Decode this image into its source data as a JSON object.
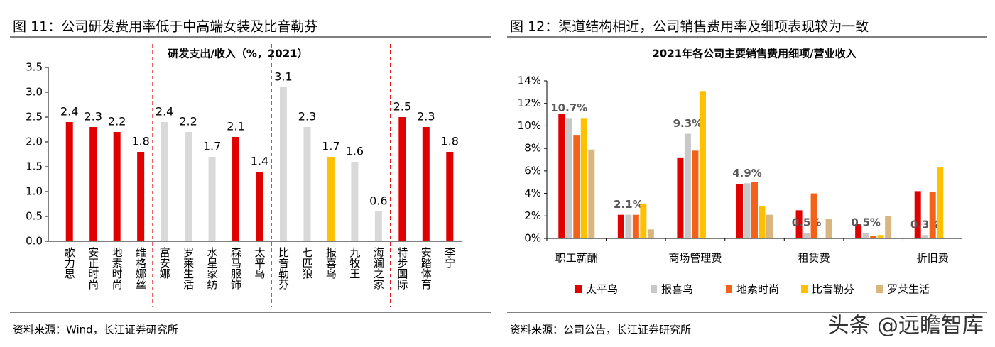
{
  "chart_data": [
    {
      "type": "bar",
      "title": "图 11：公司研发费用率低于中高端女装及比音勒芬",
      "subtitle": "研发支出/收入（%，2021）",
      "source": "资料来源：Wind，长江证券研究所",
      "categories": [
        "歌力思",
        "安正时尚",
        "地素时尚",
        "维格娜丝",
        "富安娜",
        "罗莱生活",
        "水星家纺",
        "森马服饰",
        "太平鸟",
        "比音勒芬",
        "七匹狼",
        "报喜鸟",
        "九牧王",
        "海澜之家",
        "特步国际",
        "安踏体育",
        "李宁"
      ],
      "values": [
        2.4,
        2.3,
        2.2,
        1.8,
        2.4,
        2.2,
        1.7,
        2.1,
        1.4,
        3.1,
        2.3,
        1.7,
        1.6,
        0.6,
        2.5,
        2.3,
        1.8
      ],
      "colors": [
        "#e10000",
        "#e10000",
        "#e10000",
        "#e10000",
        "#d9d9d9",
        "#d9d9d9",
        "#d9d9d9",
        "#e10000",
        "#e10000",
        "#d9d9d9",
        "#d9d9d9",
        "#ffc000",
        "#d9d9d9",
        "#d9d9d9",
        "#e10000",
        "#e10000",
        "#e10000"
      ],
      "ylim": [
        0,
        3.5
      ],
      "yticks": [
        {
          "value": 0,
          "label": "0.0"
        },
        0.5,
        {
          "value": 1,
          "label": "1.0"
        },
        1.5,
        {
          "value": 2,
          "label": "2.0"
        },
        2.5,
        {
          "value": 3,
          "label": "3.0"
        },
        3.5
      ],
      "grid": false
    },
    {
      "type": "grouped_bar",
      "title": "图 12：渠道结构相近，公司销售费用率及细项表现较为一致",
      "subtitle": "2021年各公司主要销售费用细项/营业收入",
      "source": "资料来源：公司公告，长江证券研究所",
      "watermark": "头条 @远瞻智库",
      "categories": [
        "职工薪酬",
        null,
        "商场管理费",
        null,
        "租赁费",
        null,
        "折旧费"
      ],
      "series": [
        {
          "name": "太平鸟",
          "color": "#e10000",
          "values": [
            11.1,
            2.1,
            7.2,
            4.8,
            2.5,
            1.3,
            4.2
          ]
        },
        {
          "name": "报喜鸟",
          "color": "#c8c8c8",
          "values": [
            10.7,
            2.1,
            9.3,
            4.9,
            0.5,
            0.5,
            0.3
          ],
          "value_labels": [
            "10.7%",
            "2.1%",
            "9.3%",
            "4.9%",
            "0.5%",
            "0.5%",
            "0.3%"
          ]
        },
        {
          "name": "地素时尚",
          "color": "#f4621a",
          "values": [
            9.2,
            2.1,
            7.8,
            5.0,
            4.0,
            0.2,
            4.1
          ]
        },
        {
          "name": "比音勒芬",
          "color": "#ffc000",
          "values": [
            10.7,
            3.1,
            13.1,
            2.9,
            null,
            0.3,
            6.3
          ]
        },
        {
          "name": "罗莱生活",
          "color": "#d9b57f",
          "values": [
            7.9,
            0.8,
            null,
            2.1,
            1.7,
            2.0,
            null
          ]
        }
      ],
      "ylim": [
        0,
        14
      ],
      "yticks": [
        {
          "value": 0,
          "label": "0%"
        },
        {
          "value": 2,
          "label": "2%"
        },
        {
          "value": 4,
          "label": "4%"
        },
        {
          "value": 6,
          "label": "6%"
        },
        {
          "value": 8,
          "label": "8%"
        },
        {
          "value": 10,
          "label": "10%"
        },
        {
          "value": 12,
          "label": "12%"
        },
        {
          "value": 14,
          "label": "14%"
        }
      ],
      "legend": "bottom",
      "grid": false
    }
  ]
}
